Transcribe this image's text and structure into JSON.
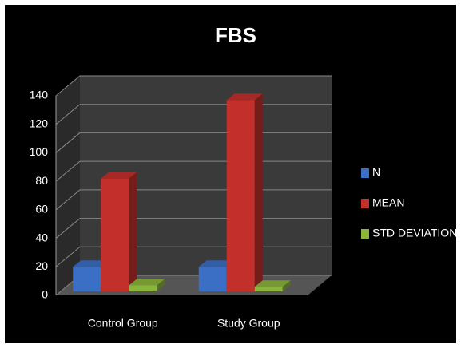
{
  "chart_data": {
    "type": "bar3d",
    "title": "FBS",
    "categories": [
      "Control Group",
      "Study Group"
    ],
    "series": [
      {
        "name": "N",
        "color": "#3b6fc6",
        "values": [
          20,
          20
        ]
      },
      {
        "name": "MEAN",
        "color": "#c3302c",
        "values": [
          82,
          137
        ]
      },
      {
        "name": "STD DEVIATION",
        "color": "#8bb43a",
        "values": [
          7,
          6
        ]
      }
    ],
    "ylim": [
      0,
      140
    ],
    "yticks": [
      0,
      20,
      40,
      60,
      80,
      100,
      120,
      140
    ],
    "grid": true,
    "legend": "right"
  }
}
